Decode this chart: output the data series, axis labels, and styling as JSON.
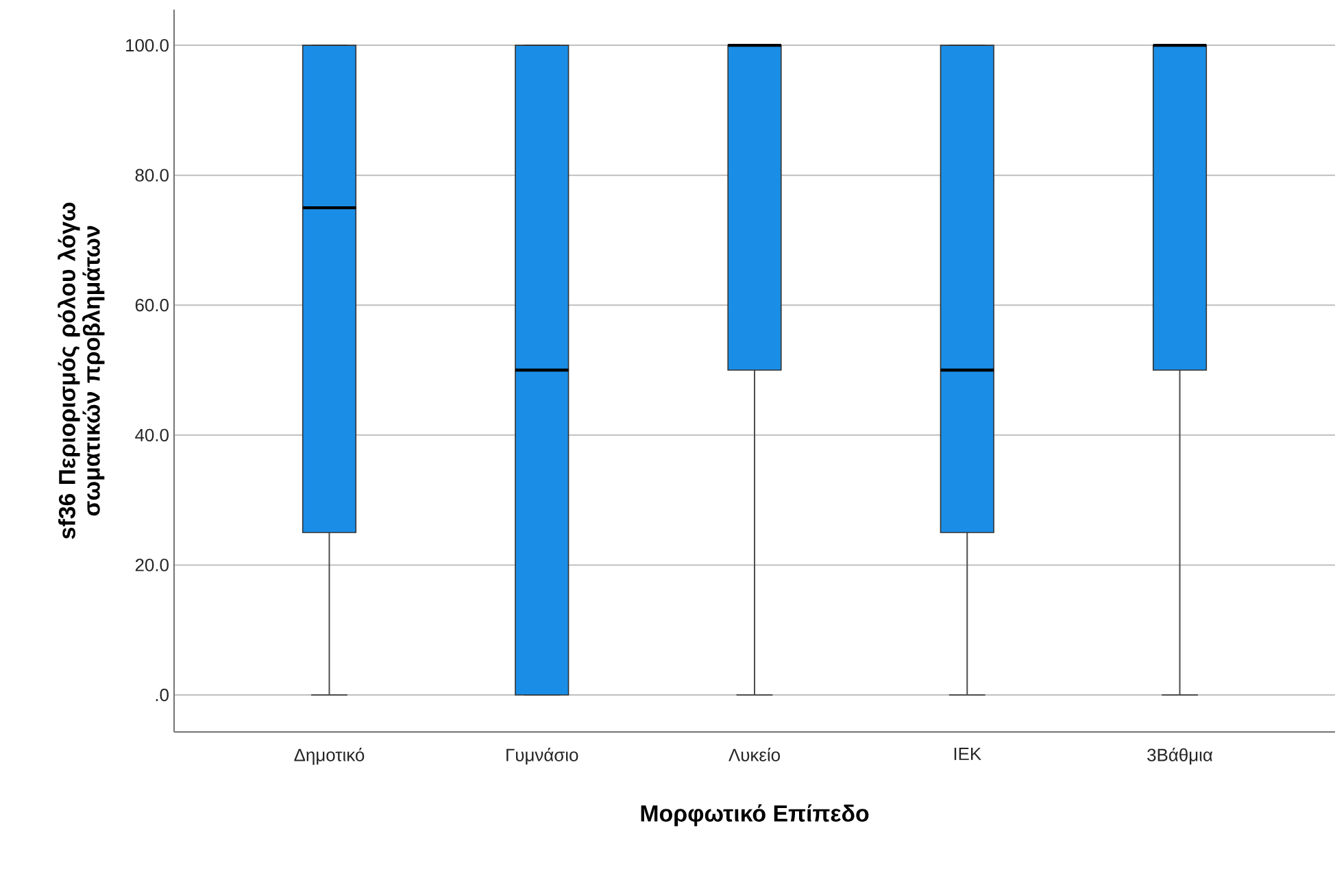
{
  "chart_data": {
    "type": "box",
    "xlabel": "Μορφωτικό Επίπεδο",
    "ylabel": "sf36 Περιορισμός ρόλου λόγω σωματικών προβλημάτων",
    "categories": [
      "Δημοτικό",
      "Γυμνάσιο",
      "Λυκείο",
      "ΙΕΚ",
      "3Βάθμια"
    ],
    "color": "#1a8ee6",
    "boxes": [
      {
        "low": 0,
        "q1": 25,
        "median": 75,
        "q3": 100,
        "high": 100
      },
      {
        "low": 0,
        "q1": 0,
        "median": 50,
        "q3": 100,
        "high": 100
      },
      {
        "low": 0,
        "q1": 50,
        "median": 100,
        "q3": 100,
        "high": 100
      },
      {
        "low": 0,
        "q1": 25,
        "median": 50,
        "q3": 100,
        "high": 100
      },
      {
        "low": 0,
        "q1": 50,
        "median": 100,
        "q3": 100,
        "high": 100
      }
    ],
    "ylim": [
      -5.7,
      105.5
    ],
    "yticks": [
      {
        "value": 0,
        "label": ".0"
      },
      {
        "value": 20,
        "label": "20.0"
      },
      {
        "value": 40,
        "label": "40.0"
      },
      {
        "value": 60,
        "label": "60.0"
      },
      {
        "value": 80,
        "label": "80.0"
      },
      {
        "value": 100,
        "label": "100.0"
      }
    ],
    "grid": "y"
  }
}
